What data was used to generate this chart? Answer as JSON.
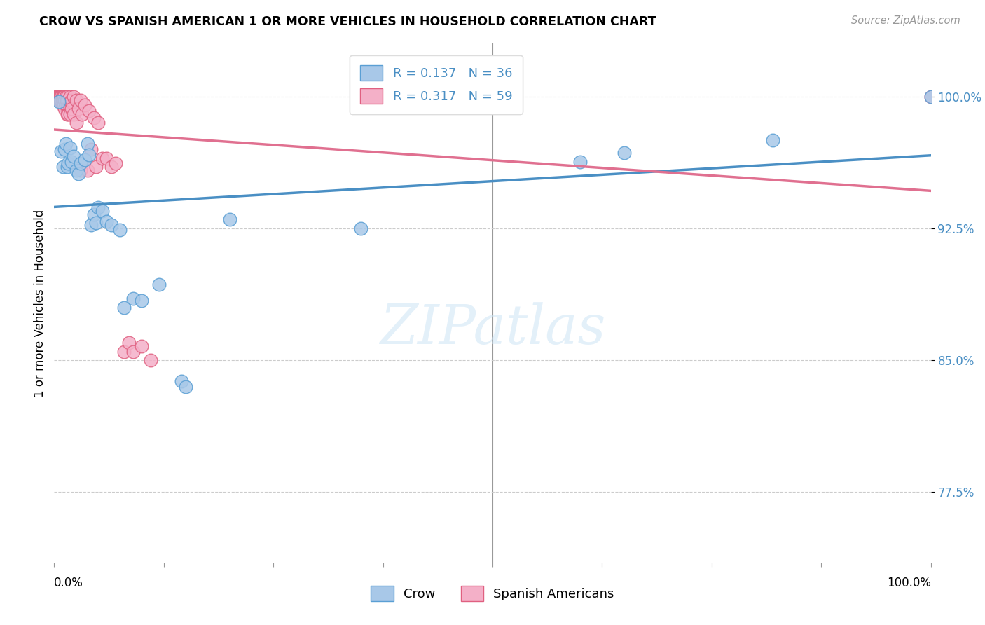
{
  "title": "CROW VS SPANISH AMERICAN 1 OR MORE VEHICLES IN HOUSEHOLD CORRELATION CHART",
  "source": "Source: ZipAtlas.com",
  "ylabel": "1 or more Vehicles in Household",
  "ytick_labels": [
    "77.5%",
    "85.0%",
    "92.5%",
    "100.0%"
  ],
  "ytick_values": [
    0.775,
    0.85,
    0.925,
    1.0
  ],
  "xlim": [
    0.0,
    1.0
  ],
  "ylim": [
    0.735,
    1.03
  ],
  "crow_color": "#a8c8e8",
  "spanish_color": "#f4b0c8",
  "crow_edge_color": "#5a9fd4",
  "spanish_edge_color": "#e06080",
  "crow_line_color": "#4a8fc4",
  "spanish_line_color": "#e07090",
  "background_color": "#ffffff",
  "crow_R": "0.137",
  "crow_N": "36",
  "spanish_R": "0.317",
  "spanish_N": "59",
  "crow_data": [
    [
      0.005,
      0.997
    ],
    [
      0.008,
      0.969
    ],
    [
      0.01,
      0.96
    ],
    [
      0.012,
      0.97
    ],
    [
      0.013,
      0.973
    ],
    [
      0.015,
      0.96
    ],
    [
      0.016,
      0.962
    ],
    [
      0.018,
      0.971
    ],
    [
      0.02,
      0.963
    ],
    [
      0.022,
      0.966
    ],
    [
      0.025,
      0.958
    ],
    [
      0.028,
      0.956
    ],
    [
      0.03,
      0.962
    ],
    [
      0.035,
      0.964
    ],
    [
      0.038,
      0.973
    ],
    [
      0.04,
      0.967
    ],
    [
      0.042,
      0.927
    ],
    [
      0.045,
      0.933
    ],
    [
      0.048,
      0.928
    ],
    [
      0.05,
      0.937
    ],
    [
      0.055,
      0.935
    ],
    [
      0.06,
      0.929
    ],
    [
      0.065,
      0.927
    ],
    [
      0.075,
      0.924
    ],
    [
      0.08,
      0.88
    ],
    [
      0.09,
      0.885
    ],
    [
      0.1,
      0.884
    ],
    [
      0.12,
      0.893
    ],
    [
      0.145,
      0.838
    ],
    [
      0.15,
      0.835
    ],
    [
      0.2,
      0.93
    ],
    [
      0.35,
      0.925
    ],
    [
      0.6,
      0.963
    ],
    [
      0.65,
      0.968
    ],
    [
      0.82,
      0.975
    ],
    [
      1.0,
      1.0
    ]
  ],
  "spanish_data": [
    [
      0.002,
      1.0
    ],
    [
      0.003,
      1.0
    ],
    [
      0.004,
      1.0
    ],
    [
      0.005,
      1.0
    ],
    [
      0.005,
      0.998
    ],
    [
      0.006,
      1.0
    ],
    [
      0.006,
      0.998
    ],
    [
      0.007,
      1.0
    ],
    [
      0.007,
      0.998
    ],
    [
      0.008,
      1.0
    ],
    [
      0.008,
      0.998
    ],
    [
      0.009,
      1.0
    ],
    [
      0.009,
      0.998
    ],
    [
      0.01,
      1.0
    ],
    [
      0.01,
      0.998
    ],
    [
      0.01,
      0.995
    ],
    [
      0.011,
      1.0
    ],
    [
      0.011,
      0.995
    ],
    [
      0.012,
      0.998
    ],
    [
      0.012,
      0.993
    ],
    [
      0.013,
      1.0
    ],
    [
      0.013,
      0.995
    ],
    [
      0.014,
      0.998
    ],
    [
      0.015,
      1.0
    ],
    [
      0.015,
      0.995
    ],
    [
      0.015,
      0.99
    ],
    [
      0.016,
      0.998
    ],
    [
      0.016,
      0.99
    ],
    [
      0.017,
      0.995
    ],
    [
      0.018,
      1.0
    ],
    [
      0.018,
      0.99
    ],
    [
      0.019,
      0.997
    ],
    [
      0.02,
      0.998
    ],
    [
      0.02,
      0.993
    ],
    [
      0.022,
      1.0
    ],
    [
      0.022,
      0.99
    ],
    [
      0.025,
      0.998
    ],
    [
      0.025,
      0.985
    ],
    [
      0.028,
      0.993
    ],
    [
      0.03,
      0.998
    ],
    [
      0.03,
      0.958
    ],
    [
      0.032,
      0.99
    ],
    [
      0.035,
      0.995
    ],
    [
      0.038,
      0.958
    ],
    [
      0.04,
      0.992
    ],
    [
      0.042,
      0.97
    ],
    [
      0.045,
      0.988
    ],
    [
      0.048,
      0.96
    ],
    [
      0.05,
      0.985
    ],
    [
      0.055,
      0.965
    ],
    [
      0.06,
      0.965
    ],
    [
      0.065,
      0.96
    ],
    [
      0.07,
      0.962
    ],
    [
      0.08,
      0.855
    ],
    [
      0.085,
      0.86
    ],
    [
      0.09,
      0.855
    ],
    [
      0.1,
      0.858
    ],
    [
      0.11,
      0.85
    ],
    [
      1.0,
      1.0
    ]
  ]
}
